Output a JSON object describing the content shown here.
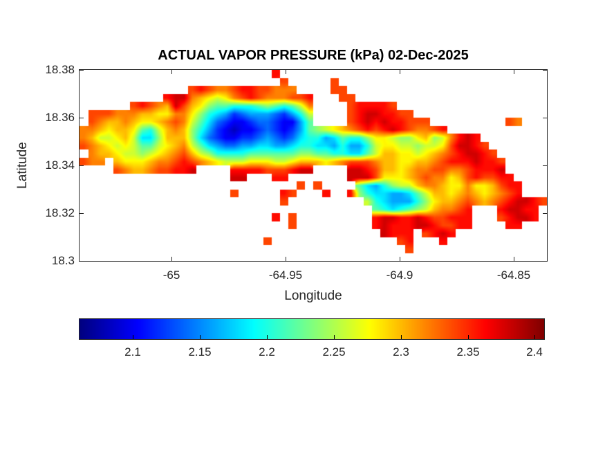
{
  "figure": {
    "title": "ACTUAL VAPOR PRESSURE (kPa) 02-Dec-2025",
    "background": "#ffffff"
  },
  "axes": {
    "xlabel": "Longitude",
    "ylabel": "Latitude",
    "xlim": [
      -65.0403,
      -64.8355
    ],
    "ylim": [
      18.3,
      18.38
    ],
    "xticks": [
      {
        "value": -65,
        "label": "-65"
      },
      {
        "value": -64.95,
        "label": "-64.95"
      },
      {
        "value": -64.9,
        "label": "-64.9"
      },
      {
        "value": -64.85,
        "label": "-64.85"
      }
    ],
    "yticks": [
      {
        "value": 18.3,
        "label": "18.3"
      },
      {
        "value": 18.32,
        "label": "18.32"
      },
      {
        "value": 18.34,
        "label": "18.34"
      },
      {
        "value": 18.36,
        "label": "18.36"
      },
      {
        "value": 18.38,
        "label": "18.38"
      }
    ],
    "tick_color": "#262626"
  },
  "colorbar": {
    "orientation": "horizontal",
    "colormap": "jet",
    "limits": [
      2.06,
      2.407
    ],
    "tick_values": [
      2.1,
      2.15,
      2.2,
      2.25,
      2.3,
      2.35,
      2.4
    ],
    "tick_labels": [
      "2.1",
      "2.15",
      "2.2",
      "2.25",
      "2.3",
      "2.35",
      "2.4"
    ],
    "end_colors": {
      "low": "#000080",
      "high": "#800000"
    }
  },
  "chart_data": {
    "type": "heatmap",
    "title": "ACTUAL VAPOR PRESSURE (kPa) 02-Dec-2025",
    "variable": "Actual vapor pressure",
    "units": "kPa",
    "date": "02-Dec-2025",
    "xlabel": "Longitude",
    "ylabel": "Latitude",
    "x_range": [
      -65.0403,
      -64.8355
    ],
    "y_range": [
      18.3,
      18.38
    ],
    "colormap": "jet",
    "color_axis": [
      2.06,
      2.407
    ],
    "grid_note": "Island raster; rows top-to-bottom (lat 18.38 to 18.30), chars encode kPa, '.' = sea (no data)",
    "grid": {
      "nrows": 24,
      "ncols": 56,
      "nan_char": ".",
      "value_chars": "0123456789abcdefg",
      "value_min": 2.08,
      "value_step": 0.02,
      "rows": [
        ".......................e................................",
        "........................d.....d.........................",
        ".............dedccdeeddccc....dd........................",
        "..........effcba9acdedcccdde...dd.......................",
        "......dedcbfdba877666787679c....deeeed..................",
        ".dddcccbbaacca86542344432469....deffeedd................",
        ".dcbbcbaabcdc975321123321147....defefeeddd.........dc...",
        "ccbabba769bcb86421011232124789abcdedefedccde............",
        "cb99ab9558bbb8532112234323566457668aa988ab89cefe........",
        "dcba9a9779abc97543344554456655464469aa99899adffed.......",
        ".cbba9989abcdb9866667777778877665579bbaa9abcdeffed......",
        "dcc.baaabccdedcba999aaa99abbbabcdddcbbaabbcdeeefeed.....",
        "....dcbbcddeef....eeeedddeff....ffedbbabccddccdeeef.....",
        "..................ff...ee.......fffdaaabcdccabdeddee....",
        "..........................d.d....7546899bccbaacaabdee...",
        "..................d.....ed...e..e865544579bbabcbabcde...",
        "........................d.........96544468abbcdcbcdeffed",
        "...................................7656789bccde...effee.",
        ".......................e.d.........effeefeddeee...deffe.",
        ".........................d.........efeeeffeddee....ee...",
        "....................................feee.defe...........",
        "......................d...............de...e............",
        ".......................................d................",
        "........................................................"
      ]
    }
  }
}
